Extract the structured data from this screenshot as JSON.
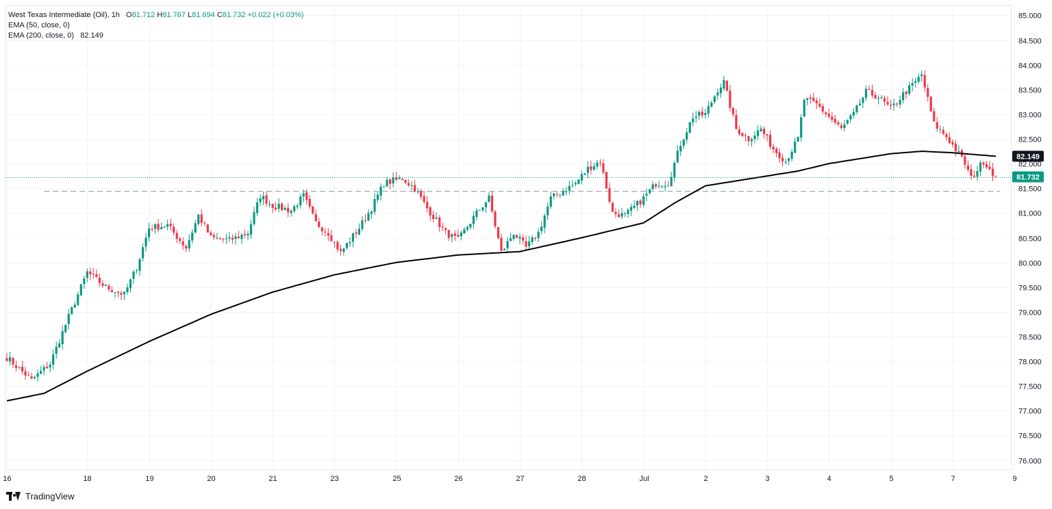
{
  "legend": {
    "symbol": "West Texas Intermediate (Oil), 1h",
    "o_label": "O",
    "o_value": "81.712",
    "h_label": "H",
    "h_value": "81.767",
    "l_label": "L",
    "l_value": "81.694",
    "c_label": "C",
    "c_value": "81.732",
    "change": "+0.022 (+0.03%)",
    "ema50": "EMA (50, close, 0)",
    "ema200": "EMA (200, close, 0)",
    "ema200_value": "82.149"
  },
  "brand": {
    "name": "TradingView"
  },
  "colors": {
    "up": "#089981",
    "down": "#f23645",
    "ema": "#000000",
    "grid": "#f0f3fa"
  },
  "chart_data": {
    "type": "candlestick",
    "title": "West Texas Intermediate (Oil), 1h",
    "ylim": [
      75.8,
      85.2
    ],
    "y_ticks": [
      "85.000",
      "84.500",
      "84.000",
      "83.500",
      "83.000",
      "82.500",
      "82.000",
      "81.500",
      "81.000",
      "80.500",
      "80.000",
      "79.500",
      "79.000",
      "78.500",
      "78.000",
      "77.500",
      "77.000",
      "76.500",
      "76.000"
    ],
    "x_ticks": [
      "16",
      "18",
      "19",
      "20",
      "21",
      "23",
      "25",
      "26",
      "27",
      "28",
      "Jul",
      "2",
      "3",
      "4",
      "5",
      "7",
      "9"
    ],
    "x_tick_index": [
      0,
      26,
      46,
      66,
      86,
      106,
      126,
      146,
      166,
      186,
      206,
      226,
      246,
      266,
      286,
      306,
      326
    ],
    "bar_count": 321,
    "close_anchors": [
      [
        0,
        78.08
      ],
      [
        8,
        77.62
      ],
      [
        14,
        77.95
      ],
      [
        20,
        78.9
      ],
      [
        26,
        79.8
      ],
      [
        32,
        79.5
      ],
      [
        38,
        79.35
      ],
      [
        42,
        79.9
      ],
      [
        46,
        80.7
      ],
      [
        52,
        80.75
      ],
      [
        58,
        80.3
      ],
      [
        62,
        80.95
      ],
      [
        66,
        80.5
      ],
      [
        72,
        80.45
      ],
      [
        78,
        80.6
      ],
      [
        82,
        81.35
      ],
      [
        86,
        81.15
      ],
      [
        92,
        81.05
      ],
      [
        96,
        81.35
      ],
      [
        100,
        80.8
      ],
      [
        104,
        80.6
      ],
      [
        108,
        80.2
      ],
      [
        114,
        80.7
      ],
      [
        118,
        81.1
      ],
      [
        122,
        81.6
      ],
      [
        128,
        81.7
      ],
      [
        132,
        81.5
      ],
      [
        136,
        81.1
      ],
      [
        142,
        80.6
      ],
      [
        146,
        80.45
      ],
      [
        152,
        81.0
      ],
      [
        156,
        81.3
      ],
      [
        160,
        80.2
      ],
      [
        164,
        80.6
      ],
      [
        168,
        80.3
      ],
      [
        172,
        80.6
      ],
      [
        176,
        81.3
      ],
      [
        180,
        81.45
      ],
      [
        184,
        81.6
      ],
      [
        188,
        81.9
      ],
      [
        192,
        82.05
      ],
      [
        196,
        81.0
      ],
      [
        200,
        80.95
      ],
      [
        206,
        81.3
      ],
      [
        210,
        81.6
      ],
      [
        214,
        81.6
      ],
      [
        218,
        82.4
      ],
      [
        222,
        82.95
      ],
      [
        226,
        83.0
      ],
      [
        230,
        83.5
      ],
      [
        232,
        83.65
      ],
      [
        236,
        82.7
      ],
      [
        240,
        82.5
      ],
      [
        244,
        82.7
      ],
      [
        248,
        82.3
      ],
      [
        252,
        82.05
      ],
      [
        256,
        82.5
      ],
      [
        258,
        83.3
      ],
      [
        262,
        83.2
      ],
      [
        266,
        82.95
      ],
      [
        270,
        82.7
      ],
      [
        274,
        83.0
      ],
      [
        278,
        83.45
      ],
      [
        282,
        83.35
      ],
      [
        286,
        83.1
      ],
      [
        290,
        83.4
      ],
      [
        294,
        83.65
      ],
      [
        296,
        83.8
      ],
      [
        300,
        82.8
      ],
      [
        304,
        82.55
      ],
      [
        308,
        82.2
      ],
      [
        310,
        82.0
      ],
      [
        312,
        81.7
      ],
      [
        316,
        82.05
      ],
      [
        318,
        81.9
      ],
      [
        320,
        81.732
      ]
    ],
    "ema200_anchors": [
      [
        0,
        77.2
      ],
      [
        12,
        77.35
      ],
      [
        26,
        77.8
      ],
      [
        46,
        78.4
      ],
      [
        66,
        78.95
      ],
      [
        86,
        79.4
      ],
      [
        106,
        79.75
      ],
      [
        126,
        80.0
      ],
      [
        146,
        80.15
      ],
      [
        166,
        80.22
      ],
      [
        186,
        80.5
      ],
      [
        196,
        80.65
      ],
      [
        206,
        80.8
      ],
      [
        216,
        81.2
      ],
      [
        226,
        81.55
      ],
      [
        246,
        81.75
      ],
      [
        256,
        81.85
      ],
      [
        266,
        82.0
      ],
      [
        276,
        82.1
      ],
      [
        286,
        82.2
      ],
      [
        296,
        82.25
      ],
      [
        306,
        82.22
      ],
      [
        320,
        82.149
      ]
    ],
    "last_price": 81.732,
    "last_price_label": "81.732",
    "ema200_last": 82.149,
    "ema200_label": "82.149",
    "support_level": 81.45
  }
}
